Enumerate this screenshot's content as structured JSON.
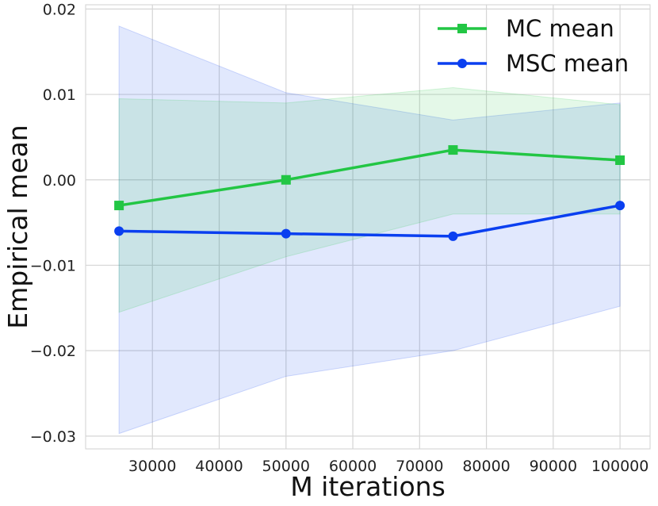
{
  "chart_data": {
    "type": "line",
    "xlabel": "M iterations",
    "ylabel": "Empirical mean",
    "x": [
      25000,
      50000,
      75000,
      100000
    ],
    "xlim": [
      20000,
      104500
    ],
    "ylim": [
      -0.0315,
      0.0205
    ],
    "xticks": [
      30000,
      40000,
      50000,
      60000,
      70000,
      80000,
      90000,
      100000
    ],
    "xtick_labels": [
      "30000",
      "40000",
      "50000",
      "60000",
      "70000",
      "80000",
      "90000",
      "100000"
    ],
    "yticks": [
      -0.03,
      -0.02,
      -0.01,
      0.0,
      0.01,
      0.02
    ],
    "ytick_labels": [
      "−0.03",
      "−0.02",
      "−0.01",
      "0.00",
      "0.01",
      "0.02"
    ],
    "grid": true,
    "legend_position": "top-right",
    "series": [
      {
        "name": "MC mean",
        "color": "#22c644",
        "marker": "square",
        "values": [
          -0.003,
          0.0,
          0.0035,
          0.0023
        ],
        "band_lower": [
          -0.0155,
          -0.009,
          -0.004,
          -0.004
        ],
        "band_upper": [
          0.0095,
          0.009,
          0.0108,
          0.0088
        ]
      },
      {
        "name": "MSC mean",
        "color": "#0a3ff0",
        "marker": "circle",
        "values": [
          -0.006,
          -0.0063,
          -0.0066,
          -0.003
        ],
        "band_lower": [
          -0.0297,
          -0.023,
          -0.02,
          -0.0148
        ],
        "band_upper": [
          0.018,
          0.0102,
          0.007,
          0.009
        ]
      }
    ]
  }
}
